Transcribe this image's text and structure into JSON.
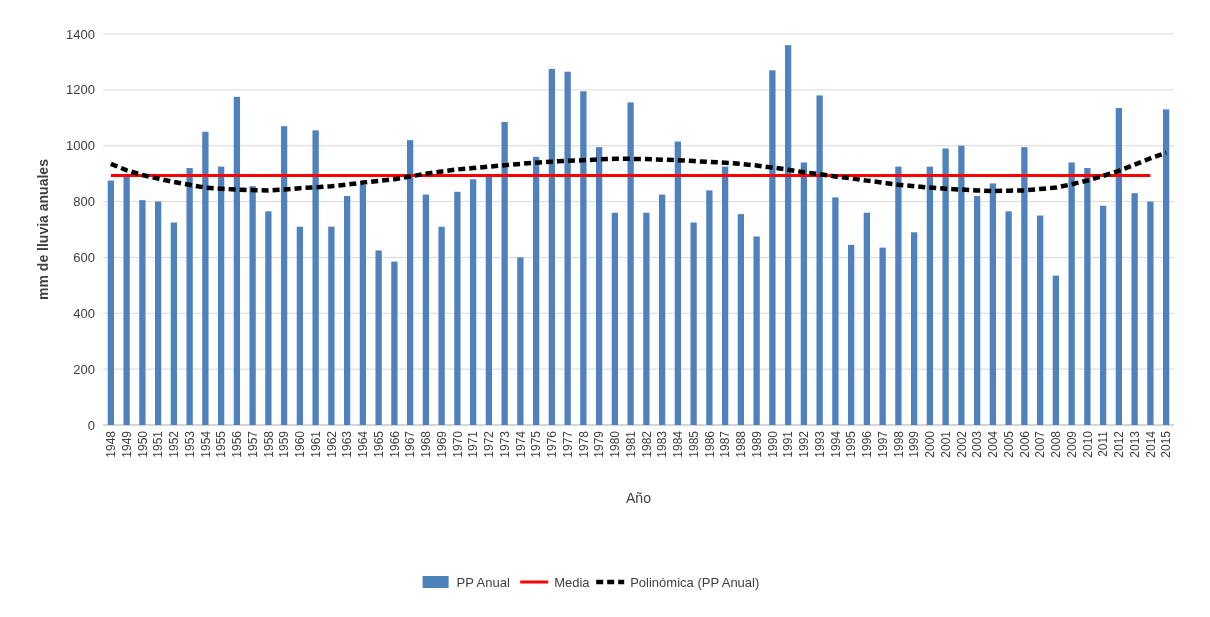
{
  "chart_data": {
    "type": "bar",
    "xlabel": "Año",
    "ylabel": "mm de lluvia anuales",
    "categories": [
      "1948",
      "1949",
      "1950",
      "1951",
      "1952",
      "1953",
      "1954",
      "1955",
      "1956",
      "1957",
      "1958",
      "1959",
      "1960",
      "1961",
      "1962",
      "1963",
      "1964",
      "1965",
      "1966",
      "1967",
      "1968",
      "1969",
      "1970",
      "1971",
      "1972",
      "1973",
      "1974",
      "1975",
      "1976",
      "1977",
      "1978",
      "1979",
      "1980",
      "1981",
      "1982",
      "1983",
      "1984",
      "1985",
      "1986",
      "1987",
      "1988",
      "1989",
      "1990",
      "1991",
      "1992",
      "1993",
      "1994",
      "1995",
      "1996",
      "1997",
      "1998",
      "1999",
      "2000",
      "2001",
      "2002",
      "2003",
      "2004",
      "2005",
      "2006",
      "2007",
      "2008",
      "2009",
      "2010",
      "2011",
      "2012",
      "2013",
      "2014",
      "2015"
    ],
    "series": [
      {
        "name": "PP Anual",
        "color": "#4f81bd",
        "values": [
          875,
          890,
          805,
          800,
          725,
          920,
          1050,
          925,
          1175,
          855,
          765,
          1070,
          710,
          1055,
          710,
          820,
          860,
          625,
          585,
          1020,
          825,
          710,
          835,
          880,
          895,
          1085,
          600,
          960,
          1275,
          1265,
          1195,
          995,
          760,
          1155,
          760,
          825,
          1015,
          725,
          840,
          925,
          755,
          675,
          1270,
          1360,
          940,
          1180,
          815,
          645,
          760,
          635,
          925,
          690,
          925,
          990,
          1000,
          820,
          865,
          765,
          995,
          750,
          535,
          940,
          920,
          785,
          1135,
          830,
          800,
          1130
        ]
      },
      {
        "name": "Media",
        "type": "line",
        "color": "#ff0000",
        "line_style": "solid",
        "values": [
          893,
          893,
          893,
          893,
          893,
          893,
          893,
          893,
          893,
          893,
          893,
          893,
          893,
          893,
          893,
          893,
          893,
          893,
          893,
          893,
          893,
          893,
          893,
          893,
          893,
          893,
          893,
          893,
          893,
          893,
          893,
          893,
          893,
          893,
          893,
          893,
          893,
          893,
          893,
          893,
          893,
          893,
          893,
          893,
          893,
          893,
          893,
          893,
          893,
          893,
          893,
          893,
          893,
          893,
          893,
          893,
          893,
          893,
          893,
          893,
          893,
          893,
          893,
          893,
          893,
          893,
          893,
          null
        ]
      },
      {
        "name": "Polinómica (PP Anual)",
        "type": "line",
        "color": "#000000",
        "line_style": "dashed",
        "values": [
          935,
          912,
          895,
          882,
          870,
          860,
          850,
          846,
          843,
          841,
          840,
          843,
          848,
          851,
          855,
          861,
          868,
          874,
          880,
          890,
          900,
          908,
          915,
          920,
          925,
          930,
          935,
          939,
          943,
          946,
          948,
          951,
          953,
          953,
          952,
          950,
          948,
          945,
          942,
          939,
          935,
          929,
          922,
          914,
          905,
          898,
          890,
          883,
          875,
          868,
          860,
          855,
          850,
          846,
          843,
          840,
          838,
          839,
          840,
          845,
          850,
          862,
          875,
          892,
          910,
          932,
          955,
          975
        ]
      }
    ],
    "ylim": [
      0,
      1400
    ],
    "yticks": [
      0,
      200,
      400,
      600,
      800,
      1000,
      1200,
      1400
    ],
    "grid": "y",
    "legend": "bottom"
  }
}
